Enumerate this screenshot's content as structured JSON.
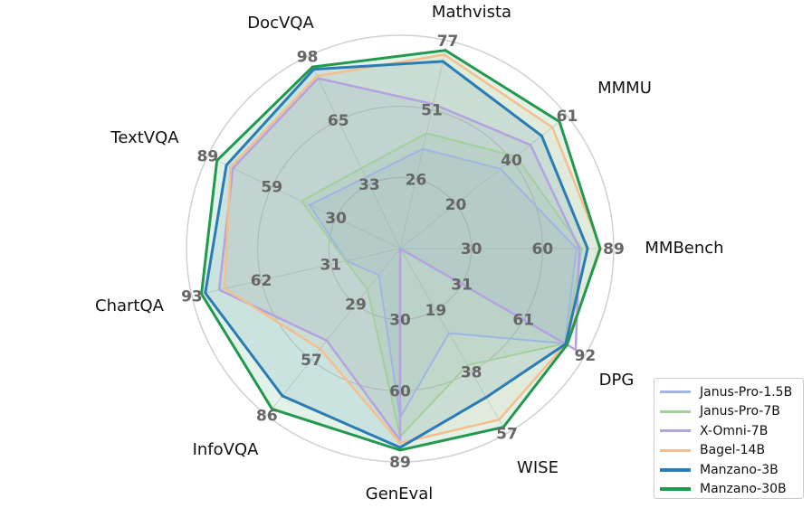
{
  "chart_data": {
    "type": "radar",
    "title": "",
    "axes": [
      {
        "name": "Mathvista",
        "ticks": [
          "26",
          "51",
          "77"
        ],
        "max": 77
      },
      {
        "name": "MMMU",
        "ticks": [
          "20",
          "40",
          "61"
        ],
        "max": 61
      },
      {
        "name": "MMBench",
        "ticks": [
          "30",
          "60",
          "89"
        ],
        "max": 89
      },
      {
        "name": "DPG",
        "ticks": [
          "31",
          "61",
          "92"
        ],
        "max": 92
      },
      {
        "name": "WISE",
        "ticks": [
          "19",
          "38",
          "57"
        ],
        "max": 57
      },
      {
        "name": "GenEval",
        "ticks": [
          "30",
          "60",
          "89"
        ],
        "max": 89
      },
      {
        "name": "InfoVQA",
        "ticks": [
          "29",
          "57",
          "86"
        ],
        "max": 86
      },
      {
        "name": "ChartQA",
        "ticks": [
          "31",
          "62",
          "93"
        ],
        "max": 93
      },
      {
        "name": "TextVQA",
        "ticks": [
          "30",
          "59",
          "89"
        ],
        "max": 89
      },
      {
        "name": "DocVQA",
        "ticks": [
          "33",
          "65",
          "98"
        ],
        "max": 98
      }
    ],
    "series": [
      {
        "name": "Janus-Pro-1.5B",
        "color": "#9fb6e3",
        "width": 2,
        "values": [
          36.9,
          36.6,
          73.5,
          81.9,
          26.1,
          70.5,
          13.7,
          24.0,
          41.9,
          36.3
        ]
      },
      {
        "name": "Janus-Pro-7B",
        "color": "#a3cf9d",
        "width": 2,
        "values": [
          42.7,
          42.3,
          75.8,
          81.9,
          36.0,
          78.4,
          21.1,
          24.3,
          45.6,
          41.0
        ]
      },
      {
        "name": "X-Omni-7B",
        "color": "#b3a3e0",
        "width": 2.5,
        "values": [
          53.5,
          47.6,
          74.7,
          87.3,
          0,
          80.0,
          47.4,
          80.8,
          77.3,
          86.8
        ]
      },
      {
        "name": "Bagel-14B",
        "color": "#f4bf8c",
        "width": 2.5,
        "values": [
          71.8,
          55.6,
          83.7,
          82.3,
          52.8,
          81.1,
          51.7,
          78.4,
          78.4,
          88.0
        ]
      },
      {
        "name": "Manzano-3B",
        "color": "#2b7bb5",
        "width": 3,
        "values": [
          69.3,
          51.7,
          78.1,
          82.3,
          45.9,
          83.0,
          76.0,
          87.0,
          80.3,
          91.4
        ]
      },
      {
        "name": "Manzano-30B",
        "color": "#22994f",
        "width": 3,
        "values": [
          73.4,
          58.2,
          83.3,
          83.0,
          55.1,
          84.1,
          82.7,
          88.7,
          84.7,
          92.6
        ]
      }
    ],
    "grid": true,
    "legend_position": "bottom-right"
  }
}
